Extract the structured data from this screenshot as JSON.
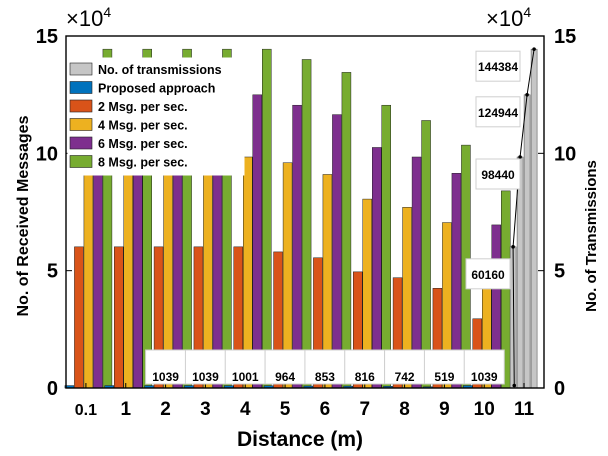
{
  "chart_data": {
    "type": "bar",
    "title": "",
    "xlabel": "Distance (m)",
    "ylabel": "No. of Received Messages",
    "ylabel_right": "No. of Transmissions",
    "exponent_label": "×10",
    "exponent_power": "4",
    "exponent_label_right": "×10",
    "exponent_power_right": "4",
    "categories": [
      "0.1",
      "1",
      "2",
      "3",
      "4",
      "5",
      "6",
      "7",
      "8",
      "9",
      "10",
      "11"
    ],
    "ylim": [
      0,
      150000
    ],
    "yticks": [
      {
        "value": 0,
        "label": "0"
      },
      {
        "value": 50000,
        "label": "5"
      },
      {
        "value": 100000,
        "label": "10"
      },
      {
        "value": 150000,
        "label": "15"
      }
    ],
    "ylim_right": [
      0,
      150000
    ],
    "yticks_right": [
      {
        "value": 0,
        "label": "0"
      },
      {
        "value": 50000,
        "label": "5"
      },
      {
        "value": 100000,
        "label": "10"
      },
      {
        "value": 150000,
        "label": "15"
      }
    ],
    "legend_position": "top-left",
    "series": [
      {
        "name": "No. of transmissions",
        "color": "#c6c6c6",
        "values": [
          14400,
          14400,
          14400,
          14400,
          14400,
          14400,
          14400,
          14400,
          14400,
          14400,
          14400,
          14400
        ],
        "rate_totals": [
          60160,
          98440,
          124944,
          144384
        ]
      },
      {
        "name": "Proposed approach",
        "color": "#0072bd",
        "values": [
          1039,
          1039,
          1039,
          1039,
          1001,
          964,
          853,
          816,
          742,
          519,
          1039,
          null
        ]
      },
      {
        "name": "2 Msg. per sec.",
        "color": "#d95319",
        "values": [
          60160,
          60160,
          60160,
          60160,
          60160,
          58000,
          55500,
          49500,
          47000,
          42500,
          29500,
          null
        ]
      },
      {
        "name": "4 Msg. per sec.",
        "color": "#edb120",
        "values": [
          98440,
          98440,
          98440,
          98440,
          98440,
          96000,
          91000,
          80500,
          77000,
          70500,
          49500,
          null
        ]
      },
      {
        "name": "6 Msg. per sec.",
        "color": "#7e2f8e",
        "values": [
          124944,
          124944,
          124944,
          124944,
          124944,
          120500,
          116500,
          102500,
          98440,
          91500,
          69500,
          null
        ]
      },
      {
        "name": "8 Msg. per sec.",
        "color": "#77ac30",
        "values": [
          144384,
          144384,
          144384,
          144384,
          144384,
          140000,
          134500,
          120500,
          114000,
          103500,
          84000,
          null
        ]
      }
    ],
    "data_labels": [
      {
        "category": "2",
        "text": "1039"
      },
      {
        "category": "3",
        "text": "1039"
      },
      {
        "category": "4",
        "text": "1001"
      },
      {
        "category": "5",
        "text": "964"
      },
      {
        "category": "6",
        "text": "853"
      },
      {
        "category": "7",
        "text": "816"
      },
      {
        "category": "8",
        "text": "742"
      },
      {
        "category": "9",
        "text": "519"
      },
      {
        "category": "10",
        "text": "1039"
      }
    ],
    "right_callouts": [
      {
        "value": 144384,
        "text": "144384"
      },
      {
        "value": 124944,
        "text": "124944"
      },
      {
        "value": 98440,
        "text": "98440"
      },
      {
        "value": 60160,
        "text": "60160"
      }
    ]
  }
}
